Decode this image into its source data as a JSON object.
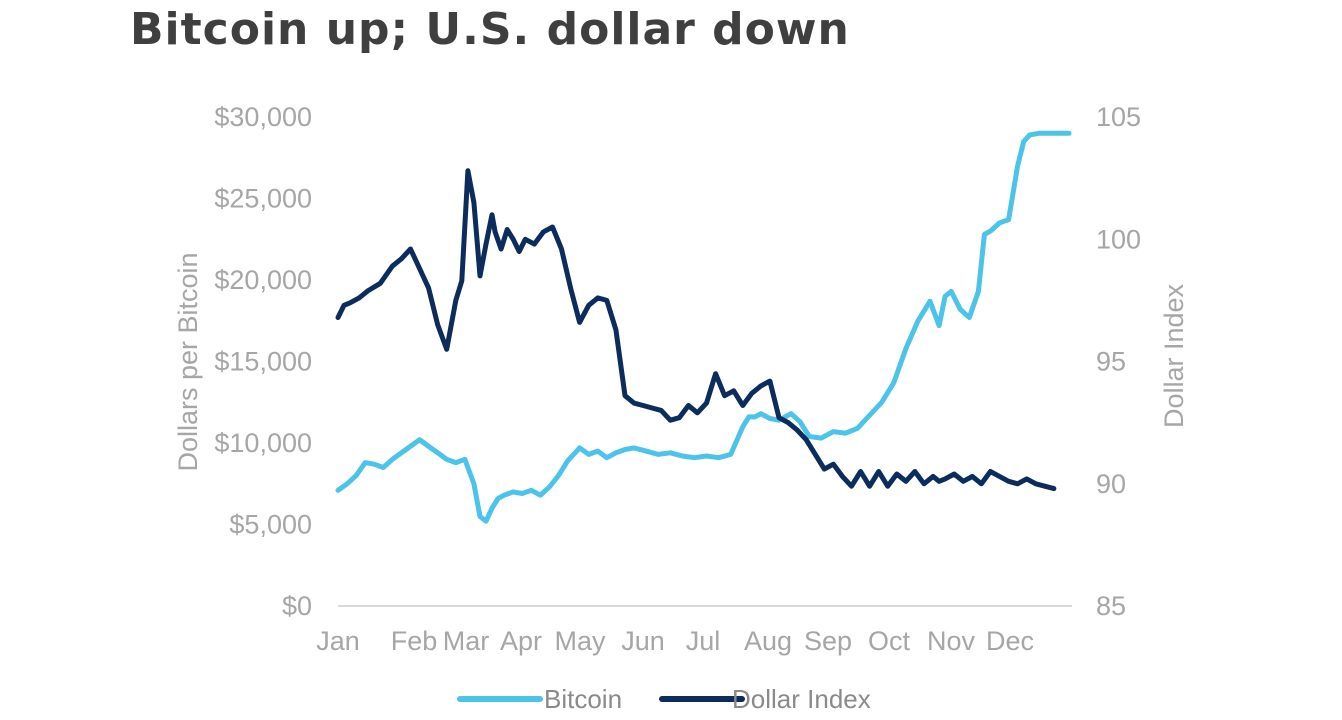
{
  "title": "Bitcoin up; U.S. dollar down",
  "chart_data": {
    "type": "line",
    "title": "Bitcoin up; U.S. dollar down",
    "ylabel_left": "Dollars per Bitcoin",
    "ylabel_right": "Dollar Index",
    "ylim_left": [
      0,
      30000
    ],
    "ylim_right": [
      85,
      105
    ],
    "yticks_left": [
      "$0",
      "$5,000",
      "$10,000",
      "$15,000",
      "$20,000",
      "$25,000",
      "$30,000"
    ],
    "yticks_left_values": [
      0,
      5000,
      10000,
      15000,
      20000,
      25000,
      30000
    ],
    "yticks_right": [
      "85",
      "90",
      "95",
      "100",
      "105"
    ],
    "yticks_right_values": [
      85,
      90,
      95,
      100,
      105
    ],
    "xlim": [
      0,
      12.15
    ],
    "xticks": [
      "Jan",
      "Feb",
      "Mar",
      "Apr",
      "May",
      "Jun",
      "Jul",
      "Aug",
      "Sep",
      "Oct",
      "Nov",
      "Dec"
    ],
    "grid": false,
    "legend_position": "bottom",
    "colors": {
      "Bitcoin": "#4cc3e8",
      "Dollar Index": "#0c2d5c",
      "axis": "#d9d9d9"
    },
    "series": [
      {
        "name": "Bitcoin",
        "axis": "left",
        "x": [
          0.0,
          0.15,
          0.3,
          0.45,
          0.6,
          0.75,
          0.9,
          1.05,
          1.2,
          1.35,
          1.5,
          1.65,
          1.8,
          1.95,
          2.1,
          2.25,
          2.35,
          2.45,
          2.55,
          2.65,
          2.75,
          2.9,
          3.05,
          3.2,
          3.35,
          3.5,
          3.65,
          3.8,
          3.9,
          4.0,
          4.15,
          4.3,
          4.45,
          4.6,
          4.75,
          4.9,
          5.1,
          5.3,
          5.5,
          5.7,
          5.9,
          6.1,
          6.3,
          6.5,
          6.7,
          6.8,
          6.9,
          7.0,
          7.15,
          7.3,
          7.5,
          7.65,
          7.8,
          8.0,
          8.2,
          8.4,
          8.6,
          8.8,
          9.0,
          9.2,
          9.4,
          9.6,
          9.8,
          9.95,
          10.05,
          10.15,
          10.3,
          10.45,
          10.6,
          10.7,
          10.8,
          10.95,
          11.1,
          11.25,
          11.35,
          11.45,
          11.6,
          11.75,
          11.9,
          11.95,
          12.05,
          12.1
        ],
        "values": [
          7100,
          7500,
          8000,
          8800,
          8700,
          8500,
          9000,
          9400,
          9800,
          10200,
          9800,
          9400,
          9000,
          8800,
          9000,
          7500,
          5500,
          5200,
          6000,
          6600,
          6800,
          7000,
          6900,
          7100,
          6800,
          7300,
          8000,
          8900,
          9300,
          9700,
          9300,
          9500,
          9100,
          9400,
          9600,
          9700,
          9500,
          9300,
          9400,
          9200,
          9100,
          9200,
          9100,
          9300,
          11000,
          11600,
          11600,
          11800,
          11500,
          11400,
          11800,
          11300,
          10400,
          10300,
          10700,
          10600,
          10900,
          11700,
          12500,
          13700,
          15800,
          17500,
          18700,
          17200,
          19000,
          19300,
          18200,
          17700,
          19300,
          22800,
          23000,
          23500,
          23700,
          27000,
          28500,
          28900,
          29000,
          29000,
          29000,
          29000,
          29000,
          29000
        ]
      },
      {
        "name": "Dollar Index",
        "axis": "right",
        "x": [
          0.0,
          0.1,
          0.2,
          0.35,
          0.5,
          0.7,
          0.9,
          1.05,
          1.2,
          1.35,
          1.5,
          1.65,
          1.8,
          1.95,
          2.05,
          2.15,
          2.25,
          2.35,
          2.45,
          2.55,
          2.6,
          2.7,
          2.8,
          2.9,
          3.0,
          3.1,
          3.25,
          3.4,
          3.55,
          3.7,
          3.85,
          4.0,
          4.15,
          4.3,
          4.45,
          4.6,
          4.75,
          4.9,
          5.05,
          5.2,
          5.35,
          5.5,
          5.65,
          5.8,
          5.95,
          6.1,
          6.25,
          6.4,
          6.55,
          6.7,
          6.85,
          7.0,
          7.15,
          7.3,
          7.45,
          7.6,
          7.75,
          7.9,
          8.05,
          8.2,
          8.35,
          8.5,
          8.65,
          8.8,
          8.95,
          9.1,
          9.25,
          9.4,
          9.55,
          9.7,
          9.85,
          9.95,
          10.05,
          10.2,
          10.35,
          10.5,
          10.65,
          10.8,
          10.95,
          11.1,
          11.25,
          11.4,
          11.55,
          11.7,
          11.85
        ],
        "values": [
          96.8,
          97.3,
          97.4,
          97.6,
          97.9,
          98.2,
          98.9,
          99.2,
          99.6,
          98.8,
          98.0,
          96.5,
          95.5,
          97.5,
          98.3,
          102.8,
          101.5,
          98.5,
          99.8,
          101.0,
          100.3,
          99.6,
          100.4,
          100.0,
          99.5,
          100.0,
          99.8,
          100.3,
          100.5,
          99.6,
          98.0,
          96.6,
          97.3,
          97.6,
          97.5,
          96.3,
          93.6,
          93.3,
          93.2,
          93.1,
          93.0,
          92.6,
          92.7,
          93.2,
          92.9,
          93.3,
          94.5,
          93.6,
          93.8,
          93.2,
          93.7,
          94.0,
          94.2,
          92.7,
          92.5,
          92.2,
          91.8,
          91.2,
          90.6,
          90.8,
          90.3,
          89.9,
          90.5,
          89.9,
          90.5,
          89.9,
          90.4,
          90.1,
          90.5,
          90.0,
          90.3,
          90.1,
          90.2,
          90.4,
          90.1,
          90.3,
          90.0,
          90.5,
          90.3,
          90.1,
          90.0,
          90.2,
          90.0,
          89.9,
          89.8
        ]
      }
    ]
  },
  "legend": [
    {
      "label": "Bitcoin",
      "color": "#4cc3e8"
    },
    {
      "label": "Dollar Index",
      "color": "#0c2d5c"
    }
  ]
}
